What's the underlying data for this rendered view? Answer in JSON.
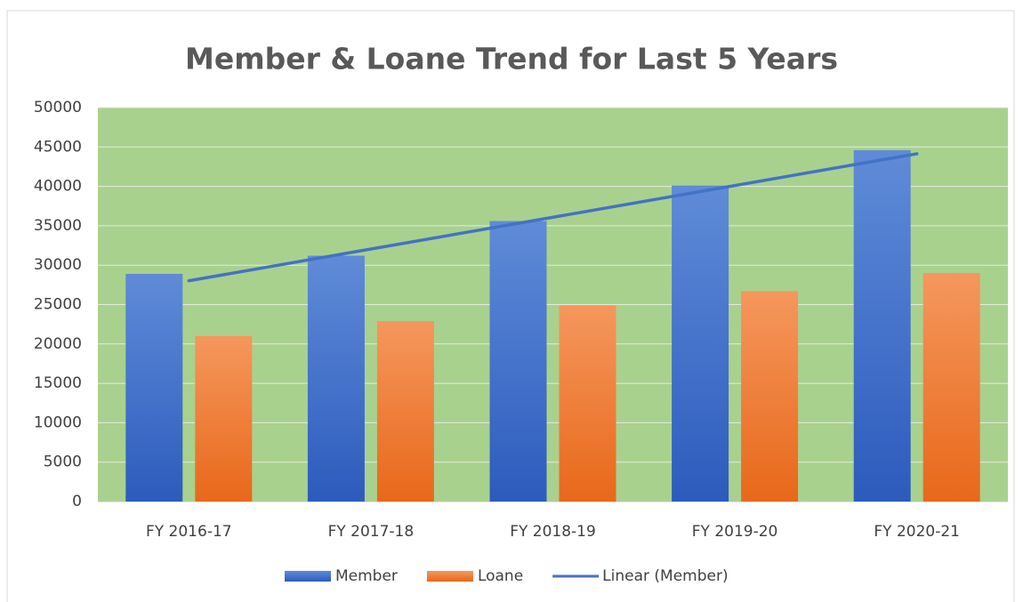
{
  "chart_data": {
    "type": "bar",
    "title": "Member & Loane Trend for Last 5 Years",
    "categories": [
      "FY 2016-17",
      "FY 2017-18",
      "FY 2018-19",
      "FY 2019-20",
      "FY 2020-21"
    ],
    "series": [
      {
        "name": "Member",
        "color": "#4472c4",
        "values": [
          28900,
          31200,
          35600,
          40100,
          44600
        ]
      },
      {
        "name": "Loane",
        "color": "#ed7d31",
        "values": [
          21000,
          22900,
          24900,
          26700,
          29000
        ]
      }
    ],
    "trendline": {
      "name": "Linear (Member)",
      "type": "linear",
      "series": 0,
      "color": "#4472c4"
    },
    "ylim": [
      0,
      50000
    ],
    "yticks": [
      0,
      5000,
      10000,
      15000,
      20000,
      25000,
      30000,
      35000,
      40000,
      45000,
      50000
    ],
    "grid": true,
    "plot_background": "#a9d18e",
    "legend": "bottom"
  }
}
